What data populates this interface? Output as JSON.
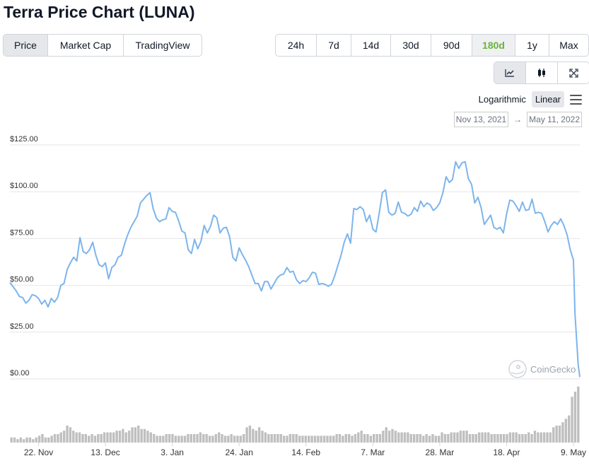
{
  "page": {
    "title": "Terra Price Chart (LUNA)"
  },
  "type_tabs": [
    {
      "label": "Price",
      "active": true
    },
    {
      "label": "Market Cap",
      "active": false
    },
    {
      "label": "TradingView",
      "active": false
    }
  ],
  "range_tabs": [
    {
      "label": "24h",
      "active": false
    },
    {
      "label": "7d",
      "active": false
    },
    {
      "label": "14d",
      "active": false
    },
    {
      "label": "30d",
      "active": false
    },
    {
      "label": "90d",
      "active": false
    },
    {
      "label": "180d",
      "active": true
    },
    {
      "label": "1y",
      "active": false
    },
    {
      "label": "Max",
      "active": false
    }
  ],
  "view_tabs": [
    {
      "icon": "line-chart-icon",
      "active": true
    },
    {
      "icon": "candlestick-icon",
      "active": false
    },
    {
      "icon": "fullscreen-icon",
      "active": false
    }
  ],
  "scale": {
    "log_label": "Logarithmic",
    "linear_label": "Linear",
    "selected": "Linear",
    "menu_icon": "hamburger-menu-icon"
  },
  "date_range": {
    "from": "Nov 13, 2021",
    "arrow": "→",
    "to": "May 11, 2022"
  },
  "watermark": {
    "text": "CoinGecko",
    "icon": "gecko-logo-icon"
  },
  "colors": {
    "line": "#7cb5ec",
    "volume": "#bfbfbf",
    "grid": "#e6e6e6",
    "accent_green": "#6bb33a"
  },
  "chart_data": {
    "type": "line",
    "x_start": "2021-11-13",
    "x_end": "2022-05-11",
    "ylim": [
      0,
      125
    ],
    "y_ticks": [
      "$0.00",
      "$25.00",
      "$50.00",
      "$75.00",
      "$100.00",
      "$125.00"
    ],
    "x_ticks": [
      {
        "label": "22. Nov",
        "date": "2021-11-22"
      },
      {
        "label": "13. Dec",
        "date": "2021-12-13"
      },
      {
        "label": "3. Jan",
        "date": "2022-01-03"
      },
      {
        "label": "24. Jan",
        "date": "2022-01-24"
      },
      {
        "label": "14. Feb",
        "date": "2022-02-14"
      },
      {
        "label": "7. Mar",
        "date": "2022-03-07"
      },
      {
        "label": "28. Mar",
        "date": "2022-03-28"
      },
      {
        "label": "18. Apr",
        "date": "2022-04-18"
      },
      {
        "label": "9. May",
        "date": "2022-05-09"
      }
    ],
    "grid": true,
    "legend": false,
    "series": [
      {
        "values": [
          [
            "2021-11-13",
            51.5
          ],
          [
            "2021-11-15",
            47
          ],
          [
            "2021-11-16",
            44
          ],
          [
            "2021-11-17",
            43.5
          ],
          [
            "2021-11-18",
            40.5
          ],
          [
            "2021-11-19",
            42
          ],
          [
            "2021-11-20",
            45
          ],
          [
            "2021-11-21",
            44.5
          ],
          [
            "2021-11-22",
            43
          ],
          [
            "2021-11-23",
            40
          ],
          [
            "2021-11-24",
            42
          ],
          [
            "2021-11-25",
            38.5
          ],
          [
            "2021-11-26",
            43
          ],
          [
            "2021-11-27",
            41
          ],
          [
            "2021-11-28",
            43.5
          ],
          [
            "2021-11-29",
            50
          ],
          [
            "2021-11-30",
            51
          ],
          [
            "2021-12-01",
            58.5
          ],
          [
            "2021-12-02",
            62
          ],
          [
            "2021-12-03",
            65
          ],
          [
            "2021-12-04",
            63
          ],
          [
            "2021-12-05",
            75.5
          ],
          [
            "2021-12-06",
            68
          ],
          [
            "2021-12-07",
            67
          ],
          [
            "2021-12-08",
            69
          ],
          [
            "2021-12-09",
            73
          ],
          [
            "2021-12-10",
            66
          ],
          [
            "2021-12-11",
            61
          ],
          [
            "2021-12-12",
            60
          ],
          [
            "2021-12-13",
            62
          ],
          [
            "2021-12-14",
            53.5
          ],
          [
            "2021-12-15",
            59.5
          ],
          [
            "2021-12-16",
            61
          ],
          [
            "2021-12-17",
            65
          ],
          [
            "2021-12-18",
            66
          ],
          [
            "2021-12-19",
            72
          ],
          [
            "2021-12-20",
            77
          ],
          [
            "2021-12-21",
            81
          ],
          [
            "2021-12-22",
            84
          ],
          [
            "2021-12-23",
            87
          ],
          [
            "2021-12-24",
            94
          ],
          [
            "2021-12-25",
            96
          ],
          [
            "2021-12-26",
            98
          ],
          [
            "2021-12-27",
            99.5
          ],
          [
            "2021-12-28",
            91
          ],
          [
            "2021-12-29",
            86
          ],
          [
            "2021-12-30",
            84
          ],
          [
            "2021-12-31",
            85
          ],
          [
            "2022-01-01",
            85.5
          ],
          [
            "2022-01-02",
            91.5
          ],
          [
            "2022-01-03",
            89.5
          ],
          [
            "2022-01-04",
            89
          ],
          [
            "2022-01-05",
            84.5
          ],
          [
            "2022-01-06",
            79
          ],
          [
            "2022-01-07",
            78
          ],
          [
            "2022-01-08",
            69
          ],
          [
            "2022-01-09",
            67
          ],
          [
            "2022-01-10",
            74.5
          ],
          [
            "2022-01-11",
            69.5
          ],
          [
            "2022-01-12",
            73.5
          ],
          [
            "2022-01-13",
            82
          ],
          [
            "2022-01-14",
            78
          ],
          [
            "2022-01-15",
            81.5
          ],
          [
            "2022-01-16",
            87.5
          ],
          [
            "2022-01-17",
            86
          ],
          [
            "2022-01-18",
            78
          ],
          [
            "2022-01-19",
            80.5
          ],
          [
            "2022-01-20",
            81
          ],
          [
            "2022-01-21",
            76
          ],
          [
            "2022-01-22",
            65
          ],
          [
            "2022-01-23",
            63
          ],
          [
            "2022-01-24",
            70
          ],
          [
            "2022-01-25",
            66.5
          ],
          [
            "2022-01-26",
            63.5
          ],
          [
            "2022-01-27",
            60
          ],
          [
            "2022-01-28",
            55.5
          ],
          [
            "2022-01-29",
            51
          ],
          [
            "2022-01-30",
            51
          ],
          [
            "2022-01-31",
            47
          ],
          [
            "2022-02-01",
            52
          ],
          [
            "2022-02-02",
            52
          ],
          [
            "2022-02-03",
            48
          ],
          [
            "2022-02-04",
            51
          ],
          [
            "2022-02-05",
            54
          ],
          [
            "2022-02-06",
            55.5
          ],
          [
            "2022-02-07",
            56
          ],
          [
            "2022-02-08",
            59.5
          ],
          [
            "2022-02-09",
            57
          ],
          [
            "2022-02-10",
            57.5
          ],
          [
            "2022-02-11",
            53
          ],
          [
            "2022-02-12",
            51
          ],
          [
            "2022-02-13",
            52.5
          ],
          [
            "2022-02-14",
            52
          ],
          [
            "2022-02-15",
            54
          ],
          [
            "2022-02-16",
            57
          ],
          [
            "2022-02-17",
            56.5
          ],
          [
            "2022-02-18",
            50.5
          ],
          [
            "2022-02-19",
            51
          ],
          [
            "2022-02-20",
            50.5
          ],
          [
            "2022-02-21",
            49.5
          ],
          [
            "2022-02-22",
            50.5
          ],
          [
            "2022-02-23",
            55
          ],
          [
            "2022-02-24",
            60.5
          ],
          [
            "2022-02-25",
            66
          ],
          [
            "2022-02-26",
            73
          ],
          [
            "2022-02-27",
            77.5
          ],
          [
            "2022-02-28",
            72.5
          ],
          [
            "2022-03-01",
            91
          ],
          [
            "2022-03-02",
            90.5
          ],
          [
            "2022-03-03",
            92
          ],
          [
            "2022-03-04",
            90.5
          ],
          [
            "2022-03-05",
            84
          ],
          [
            "2022-03-06",
            87.5
          ],
          [
            "2022-03-07",
            80
          ],
          [
            "2022-03-08",
            78.5
          ],
          [
            "2022-03-09",
            88.5
          ],
          [
            "2022-03-10",
            99.5
          ],
          [
            "2022-03-11",
            101
          ],
          [
            "2022-03-12",
            89
          ],
          [
            "2022-03-13",
            87.5
          ],
          [
            "2022-03-14",
            88.5
          ],
          [
            "2022-03-15",
            94.5
          ],
          [
            "2022-03-16",
            89
          ],
          [
            "2022-03-17",
            88.5
          ],
          [
            "2022-03-18",
            87
          ],
          [
            "2022-03-19",
            88
          ],
          [
            "2022-03-20",
            91.5
          ],
          [
            "2022-03-21",
            89.5
          ],
          [
            "2022-03-22",
            95
          ],
          [
            "2022-03-23",
            92
          ],
          [
            "2022-03-24",
            94
          ],
          [
            "2022-03-25",
            93
          ],
          [
            "2022-03-26",
            90
          ],
          [
            "2022-03-27",
            91.5
          ],
          [
            "2022-03-28",
            94
          ],
          [
            "2022-03-29",
            99.5
          ],
          [
            "2022-03-30",
            108
          ],
          [
            "2022-03-31",
            105
          ],
          [
            "2022-04-01",
            106.5
          ],
          [
            "2022-04-02",
            116
          ],
          [
            "2022-04-03",
            112.5
          ],
          [
            "2022-04-04",
            115.5
          ],
          [
            "2022-04-05",
            116
          ],
          [
            "2022-04-06",
            107
          ],
          [
            "2022-04-07",
            104
          ],
          [
            "2022-04-08",
            94
          ],
          [
            "2022-04-09",
            97
          ],
          [
            "2022-04-10",
            91.5
          ],
          [
            "2022-04-11",
            82.5
          ],
          [
            "2022-04-12",
            85
          ],
          [
            "2022-04-13",
            87.5
          ],
          [
            "2022-04-14",
            81
          ],
          [
            "2022-04-15",
            80
          ],
          [
            "2022-04-16",
            81
          ],
          [
            "2022-04-17",
            78
          ],
          [
            "2022-04-18",
            88
          ],
          [
            "2022-04-19",
            95.5
          ],
          [
            "2022-04-20",
            95
          ],
          [
            "2022-04-21",
            92.5
          ],
          [
            "2022-04-22",
            89.5
          ],
          [
            "2022-04-23",
            94.5
          ],
          [
            "2022-04-24",
            90
          ],
          [
            "2022-04-25",
            90.5
          ],
          [
            "2022-04-26",
            96
          ],
          [
            "2022-04-27",
            88.5
          ],
          [
            "2022-04-28",
            89
          ],
          [
            "2022-04-29",
            88.5
          ],
          [
            "2022-04-30",
            84
          ],
          [
            "2022-05-01",
            78.5
          ],
          [
            "2022-05-02",
            82
          ],
          [
            "2022-05-03",
            84
          ],
          [
            "2022-05-04",
            82.5
          ],
          [
            "2022-05-05",
            85.5
          ],
          [
            "2022-05-06",
            82
          ],
          [
            "2022-05-07",
            77
          ],
          [
            "2022-05-08",
            69
          ],
          [
            "2022-05-09",
            63.5
          ],
          [
            "2022-05-09T12",
            34.5
          ],
          [
            "2022-05-10",
            21
          ],
          [
            "2022-05-10T12",
            7.5
          ],
          [
            "2022-05-11",
            1
          ]
        ]
      }
    ],
    "volume": {
      "levels": [
        3,
        3,
        2,
        3,
        2,
        3,
        3,
        2,
        3,
        4,
        5,
        3,
        3,
        4,
        5,
        5,
        6,
        7,
        10,
        9,
        7,
        6,
        6,
        5,
        5,
        4,
        5,
        4,
        5,
        5,
        6,
        6,
        6,
        6,
        7,
        7,
        8,
        6,
        7,
        9,
        9,
        10,
        8,
        8,
        7,
        6,
        5,
        4,
        4,
        4,
        5,
        5,
        5,
        4,
        4,
        4,
        4,
        5,
        5,
        5,
        5,
        6,
        5,
        5,
        4,
        4,
        5,
        6,
        5,
        4,
        4,
        5,
        4,
        4,
        4,
        5,
        9,
        10,
        8,
        7,
        9,
        7,
        6,
        5,
        5,
        5,
        5,
        5,
        4,
        4,
        5,
        5,
        5,
        4,
        4,
        4,
        4,
        4,
        4,
        4,
        4,
        4,
        4,
        4,
        4,
        5,
        5,
        4,
        5,
        5,
        4,
        5,
        6,
        7,
        5,
        5,
        4,
        5,
        5,
        5,
        7,
        9,
        7,
        8,
        7,
        6,
        6,
        6,
        6,
        5,
        5,
        5,
        5,
        4,
        5,
        4,
        5,
        4,
        4,
        6,
        5,
        5,
        6,
        6,
        6,
        7,
        7,
        7,
        5,
        5,
        5,
        6,
        6,
        6,
        6,
        5,
        5,
        5,
        5,
        5,
        5,
        6,
        6,
        6,
        5,
        5,
        5,
        6,
        5,
        7,
        6,
        6,
        6,
        6,
        6,
        9,
        10,
        10,
        12,
        14,
        16,
        27,
        30,
        33
      ],
      "max": 40
    }
  }
}
